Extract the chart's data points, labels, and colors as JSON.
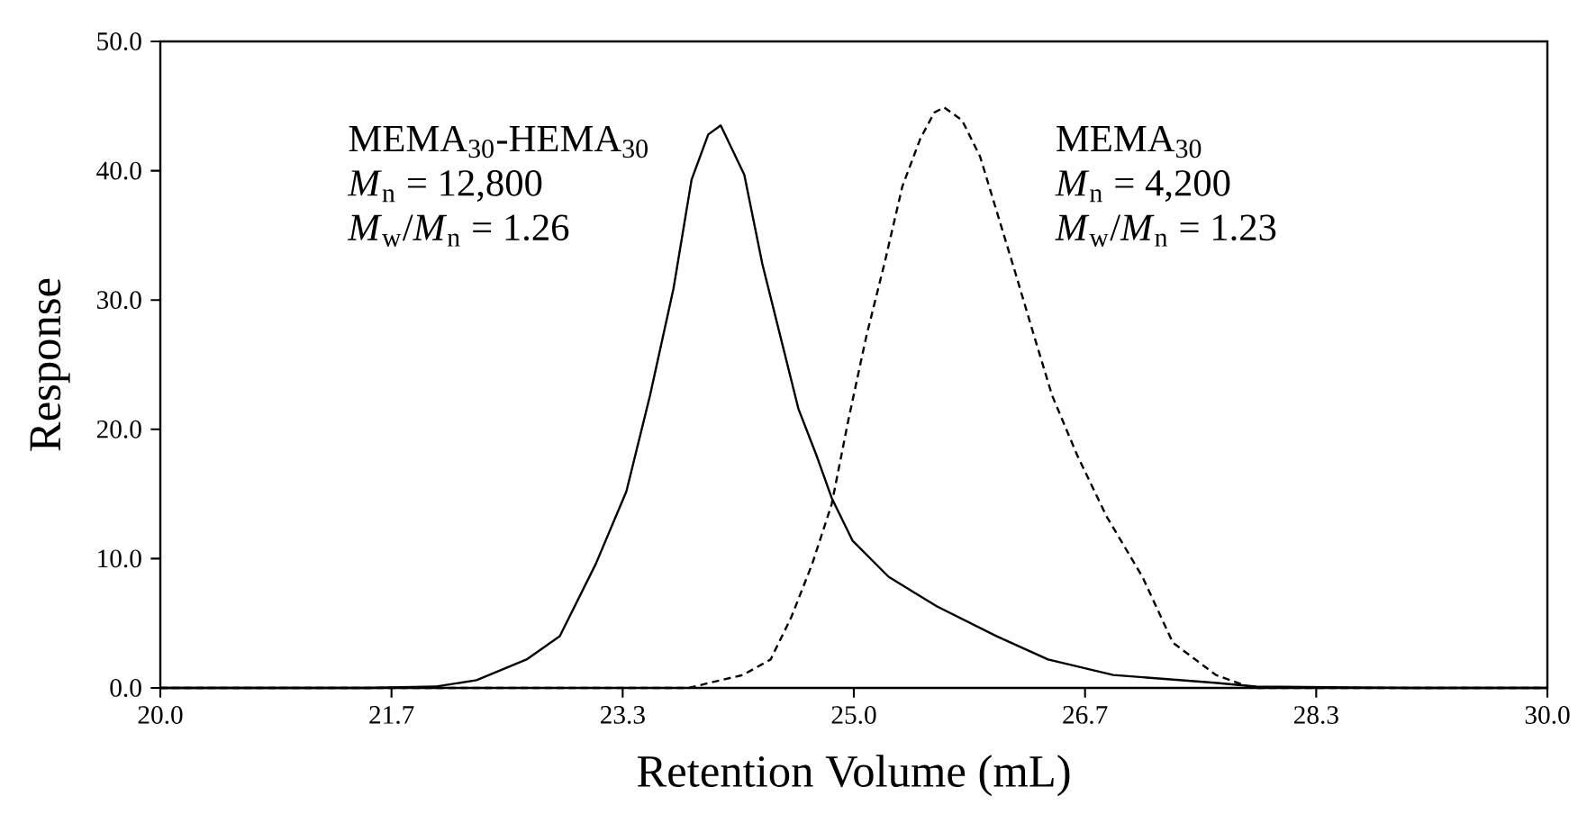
{
  "chart_data": {
    "type": "line",
    "xlabel": "Retention Volume (mL)",
    "ylabel": "Response",
    "xlim": [
      20,
      30
    ],
    "ylim": [
      0,
      50
    ],
    "xticks": [
      {
        "value": 20,
        "label": "20.0"
      },
      {
        "value": 21.6667,
        "label": "21.7"
      },
      {
        "value": 23.3333,
        "label": "23.3"
      },
      {
        "value": 25,
        "label": "25.0"
      },
      {
        "value": 26.6667,
        "label": "26.7"
      },
      {
        "value": 28.3333,
        "label": "28.3"
      },
      {
        "value": 30,
        "label": "30.0"
      }
    ],
    "yticks": [
      {
        "value": 0,
        "label": "0.0"
      },
      {
        "value": 10,
        "label": "10.0"
      },
      {
        "value": 20,
        "label": "20.0"
      },
      {
        "value": 30,
        "label": "30.0"
      },
      {
        "value": 40,
        "label": "40.0"
      },
      {
        "value": 50,
        "label": "50.0"
      }
    ],
    "grid": false,
    "marker": "none",
    "series": [
      {
        "name": "MEMA$_{30}$-HEMA$_{30}$",
        "color": "#000000",
        "line_style": "solid",
        "x": [
          20,
          21.5,
          21.98,
          22.28,
          22.64,
          22.88,
          23.14,
          23.36,
          23.53,
          23.7,
          23.83,
          23.95,
          24.04,
          24.21,
          24.34,
          24.47,
          24.6,
          24.73,
          24.84,
          24.99,
          25.25,
          25.6,
          26.03,
          26.4,
          26.87,
          27.6,
          27.9,
          29,
          30
        ],
        "values": [
          0,
          0,
          0.1,
          0.6,
          2.2,
          4.0,
          9.6,
          15.2,
          22.6,
          30.9,
          39.3,
          42.8,
          43.5,
          39.7,
          32.8,
          27.2,
          21.6,
          18.0,
          14.7,
          11.4,
          8.6,
          6.3,
          4.0,
          2.2,
          1.0,
          0.4,
          0.1,
          0,
          0
        ]
      },
      {
        "name": "MEMA$_{30}$",
        "color": "#000000",
        "line_style": "dashed",
        "x": [
          20,
          23.5,
          23.81,
          23.96,
          24.2,
          24.4,
          24.55,
          24.7,
          24.84,
          24.96,
          25.09,
          25.22,
          25.35,
          25.48,
          25.58,
          25.65,
          25.78,
          25.91,
          26.04,
          26.17,
          26.3,
          26.43,
          26.61,
          26.82,
          27.08,
          27.3,
          27.61,
          27.87,
          29,
          30
        ],
        "values": [
          0,
          0,
          0,
          0.4,
          1.0,
          2.2,
          5.5,
          9.6,
          14.2,
          20.7,
          27.2,
          32.8,
          38.8,
          42.5,
          44.5,
          44.9,
          43.9,
          41.1,
          36.5,
          31.9,
          27.2,
          22.6,
          18.0,
          13.3,
          8.6,
          3.5,
          1.0,
          0,
          0,
          0
        ]
      }
    ],
    "annotations": [
      "*M*$_{n}$ = 12,800",
      "*M*$_{w}$/*M*$_{n}$ = 1.26",
      "*M*$_{n}$ = 4,200",
      "*M*$_{w}$/*M*$_{n}$ = 1.23"
    ]
  }
}
